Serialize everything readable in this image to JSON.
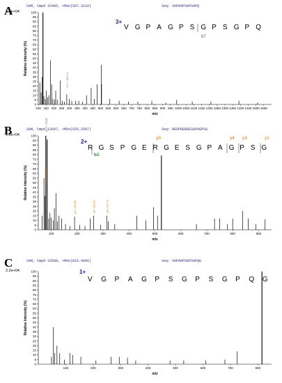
{
  "panels": [
    {
      "letter": "A",
      "header": "SAM, Cmpd 15485, +MSn(507.3118)",
      "seq_label": "Seq: VGPAGPSGPSGPQ",
      "intensity_max": "3.4e+04",
      "ylabel": "Relative Intensity (%)",
      "xlabel": "m/z",
      "charge": "3+",
      "sequence": "V G P A G P S G P S G P Q",
      "frag_labels": [
        {
          "text": "b7",
          "color": "#555555"
        }
      ],
      "annotations": [
        {
          "text": "b7++ 283.19",
          "color": "#777777"
        }
      ]
    },
    {
      "letter": "B",
      "header": "SAM, Cmpd 12697, +MSn(525.2597)",
      "seq_label": "Seq: RGSPGERGESGPAGPSG",
      "intensity_max": "1.5e+04",
      "ylabel": "Relative Intensity (%)",
      "xlabel": "m/z",
      "charge": "2+",
      "sequence": "R G S P G E R G E S G P A G P S G",
      "frag_labels": [
        {
          "text": "y9",
          "color": "#e07800"
        },
        {
          "text": "y4",
          "color": "#e07800"
        },
        {
          "text": "y3",
          "color": "#e07800"
        },
        {
          "text": "y1",
          "color": "#e07800"
        },
        {
          "text": "b1",
          "color": "#1f8a1f"
        }
      ],
      "annotations": [
        {
          "text": "b1++ 79.05",
          "color": "#1f8a1f"
        },
        {
          "text": "y1+ 76.04",
          "color": "#e07800"
        },
        {
          "text": "y3+ 190.08",
          "color": "#e07800"
        },
        {
          "text": "y4+ 264.07",
          "color": "#e07800"
        },
        {
          "text": "y9+ 314.79",
          "color": "#e07800"
        }
      ]
    },
    {
      "letter": "C",
      "header": "SAM, Cmpd 15588, +MSn(815.4966)",
      "seq_label": "Seq: VGPAGPSGPSGPQG",
      "intensity_max": "2.2e+04",
      "ylabel": "Relative Intensity (%)",
      "xlabel": "m/z",
      "charge": "1+",
      "sequence": "V G P A G P S G P S G P Q G",
      "frag_labels": [],
      "annotations": []
    }
  ],
  "chart_data": [
    {
      "type": "bar",
      "title": "",
      "xlabel": "m/z",
      "ylabel": "Relative Intensity (%)",
      "xlim": [
        100,
        1600
      ],
      "ylim": [
        0,
        100
      ],
      "x_ticks": [
        100,
        150,
        200,
        250,
        300,
        350,
        400,
        450,
        500,
        550,
        600,
        650,
        700,
        750,
        800,
        850,
        900,
        950,
        1000,
        1050,
        1100,
        1150,
        1200,
        1250,
        1300,
        1350,
        1400,
        1450,
        1500,
        1550
      ],
      "y_ticks": [
        0,
        5,
        10,
        15,
        20,
        25,
        30,
        35,
        40,
        45,
        50,
        55,
        60,
        65,
        70,
        75,
        80,
        85,
        90,
        95,
        100
      ],
      "peaks": [
        {
          "x": 110,
          "y": 24
        },
        {
          "x": 118,
          "y": 13
        },
        {
          "x": 124,
          "y": 30
        },
        {
          "x": 130,
          "y": 100
        },
        {
          "x": 136,
          "y": 9
        },
        {
          "x": 145,
          "y": 6
        },
        {
          "x": 152,
          "y": 15
        },
        {
          "x": 160,
          "y": 8
        },
        {
          "x": 168,
          "y": 10
        },
        {
          "x": 178,
          "y": 48
        },
        {
          "x": 186,
          "y": 22
        },
        {
          "x": 194,
          "y": 6
        },
        {
          "x": 205,
          "y": 5
        },
        {
          "x": 212,
          "y": 15
        },
        {
          "x": 222,
          "y": 5
        },
        {
          "x": 242,
          "y": 26
        },
        {
          "x": 255,
          "y": 4
        },
        {
          "x": 268,
          "y": 3
        },
        {
          "x": 283,
          "y": 11
        },
        {
          "x": 300,
          "y": 6
        },
        {
          "x": 315,
          "y": 4
        },
        {
          "x": 340,
          "y": 4
        },
        {
          "x": 360,
          "y": 4
        },
        {
          "x": 385,
          "y": 3
        },
        {
          "x": 410,
          "y": 10
        },
        {
          "x": 440,
          "y": 18
        },
        {
          "x": 460,
          "y": 6
        },
        {
          "x": 478,
          "y": 22
        },
        {
          "x": 505,
          "y": 43
        },
        {
          "x": 507,
          "y": 22
        },
        {
          "x": 560,
          "y": 6
        },
        {
          "x": 620,
          "y": 4
        },
        {
          "x": 680,
          "y": 3
        },
        {
          "x": 740,
          "y": 3
        },
        {
          "x": 830,
          "y": 4
        },
        {
          "x": 920,
          "y": 2
        },
        {
          "x": 990,
          "y": 5
        },
        {
          "x": 1090,
          "y": 3
        },
        {
          "x": 1210,
          "y": 3
        },
        {
          "x": 1390,
          "y": 4
        },
        {
          "x": 1510,
          "y": 2
        }
      ],
      "annotated_peaks": [
        {
          "x": 283,
          "label": "b7++ 283.19"
        }
      ]
    },
    {
      "type": "bar",
      "title": "",
      "xlabel": "m/z",
      "ylabel": "Relative Intensity (%)",
      "xlim": [
        50,
        950
      ],
      "ylim": [
        0,
        100
      ],
      "x_ticks": [
        100,
        200,
        300,
        400,
        500,
        600,
        700,
        800,
        900
      ],
      "y_ticks": [
        0,
        5,
        10,
        15,
        20,
        25,
        30,
        35,
        40,
        45,
        50,
        55,
        60,
        65,
        70,
        75,
        80,
        85,
        90,
        95,
        100
      ],
      "peaks": [
        {
          "x": 65,
          "y": 15
        },
        {
          "x": 72,
          "y": 55
        },
        {
          "x": 76,
          "y": 36
        },
        {
          "x": 79,
          "y": 100
        },
        {
          "x": 84,
          "y": 96
        },
        {
          "x": 90,
          "y": 12
        },
        {
          "x": 95,
          "y": 18
        },
        {
          "x": 100,
          "y": 13
        },
        {
          "x": 108,
          "y": 10
        },
        {
          "x": 112,
          "y": 23
        },
        {
          "x": 118,
          "y": 39
        },
        {
          "x": 124,
          "y": 9
        },
        {
          "x": 130,
          "y": 15
        },
        {
          "x": 140,
          "y": 12
        },
        {
          "x": 155,
          "y": 6
        },
        {
          "x": 172,
          "y": 4
        },
        {
          "x": 190,
          "y": 14
        },
        {
          "x": 210,
          "y": 5
        },
        {
          "x": 230,
          "y": 4
        },
        {
          "x": 250,
          "y": 12
        },
        {
          "x": 264,
          "y": 15
        },
        {
          "x": 290,
          "y": 5
        },
        {
          "x": 314,
          "y": 15
        },
        {
          "x": 320,
          "y": 9
        },
        {
          "x": 345,
          "y": 6
        },
        {
          "x": 430,
          "y": 15
        },
        {
          "x": 465,
          "y": 10
        },
        {
          "x": 495,
          "y": 24
        },
        {
          "x": 510,
          "y": 15
        },
        {
          "x": 525,
          "y": 79
        },
        {
          "x": 660,
          "y": 6
        },
        {
          "x": 730,
          "y": 12
        },
        {
          "x": 750,
          "y": 12
        },
        {
          "x": 780,
          "y": 6
        },
        {
          "x": 800,
          "y": 12
        },
        {
          "x": 838,
          "y": 20
        },
        {
          "x": 860,
          "y": 12
        },
        {
          "x": 890,
          "y": 6
        },
        {
          "x": 925,
          "y": 11
        }
      ],
      "annotated_peaks": [
        {
          "x": 79,
          "label": "b1++ 79.05"
        },
        {
          "x": 76,
          "label": "y1+ 76.04"
        },
        {
          "x": 190,
          "label": "y3+ 190.08"
        },
        {
          "x": 264,
          "label": "y4+ 264.07"
        },
        {
          "x": 314,
          "label": "y9+ 314.79"
        }
      ]
    },
    {
      "type": "bar",
      "title": "",
      "xlabel": "m/z",
      "ylabel": "Relative Intensity (%)",
      "xlim": [
        0,
        850
      ],
      "ylim": [
        0,
        100
      ],
      "x_ticks": [
        100,
        200,
        300,
        400,
        500,
        600,
        700,
        800
      ],
      "y_ticks": [
        0,
        5,
        10,
        15,
        20,
        25,
        30,
        35,
        40,
        45,
        50,
        55,
        60,
        65,
        70,
        75,
        80,
        85,
        90,
        95,
        100
      ],
      "peaks": [
        {
          "x": 48,
          "y": 8
        },
        {
          "x": 55,
          "y": 40
        },
        {
          "x": 60,
          "y": 12
        },
        {
          "x": 68,
          "y": 20
        },
        {
          "x": 78,
          "y": 12
        },
        {
          "x": 95,
          "y": 5
        },
        {
          "x": 115,
          "y": 12
        },
        {
          "x": 125,
          "y": 10
        },
        {
          "x": 155,
          "y": 8
        },
        {
          "x": 210,
          "y": 4
        },
        {
          "x": 265,
          "y": 8
        },
        {
          "x": 295,
          "y": 8
        },
        {
          "x": 325,
          "y": 7
        },
        {
          "x": 355,
          "y": 4
        },
        {
          "x": 480,
          "y": 4
        },
        {
          "x": 530,
          "y": 4
        },
        {
          "x": 610,
          "y": 4
        },
        {
          "x": 680,
          "y": 5
        },
        {
          "x": 725,
          "y": 14
        },
        {
          "x": 815,
          "y": 100
        }
      ],
      "annotated_peaks": []
    }
  ]
}
